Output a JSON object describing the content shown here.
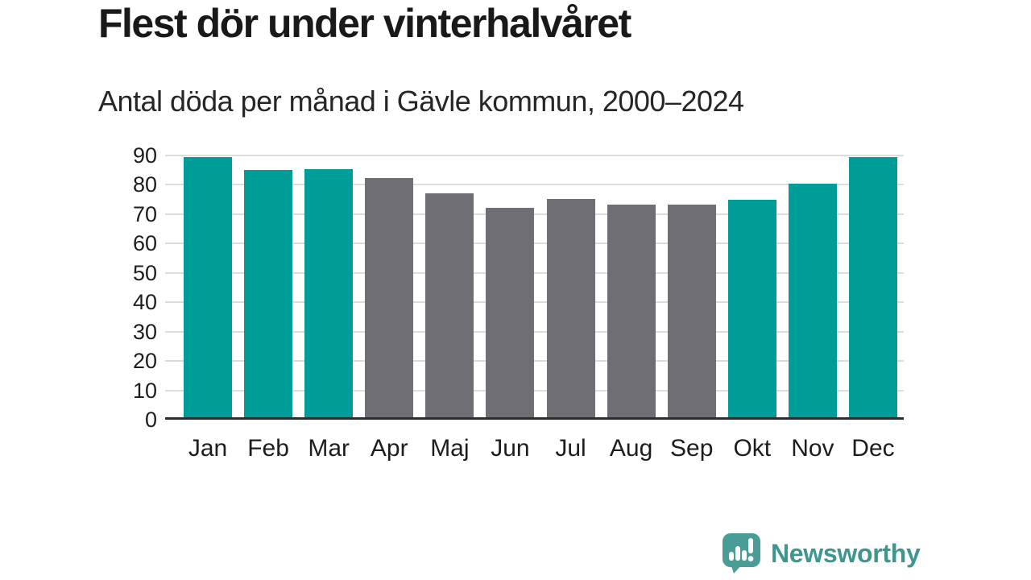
{
  "chart_data": {
    "type": "bar",
    "title": "Flest dör under vinterhalvåret",
    "subtitle": "Antal döda per månad i Gävle kommun, 2000–2024",
    "categories": [
      "Jan",
      "Feb",
      "Mar",
      "Apr",
      "Maj",
      "Jun",
      "Jul",
      "Aug",
      "Sep",
      "Okt",
      "Nov",
      "Dec"
    ],
    "values": [
      89.4,
      85.0,
      85.4,
      82.4,
      77.2,
      72.1,
      75.1,
      73.4,
      73.2,
      74.9,
      80.3,
      89.5
    ],
    "bar_colors": [
      "#009c98",
      "#009c98",
      "#009c98",
      "#6f6e74",
      "#6f6e74",
      "#6f6e74",
      "#6f6e74",
      "#6f6e74",
      "#6f6e74",
      "#009c98",
      "#009c98",
      "#009c98"
    ],
    "xlabel": "",
    "ylabel": "",
    "ylim": [
      0,
      90
    ],
    "yticks": [
      0,
      10,
      20,
      30,
      40,
      50,
      60,
      70,
      80,
      90
    ],
    "grid": true,
    "legend": "none"
  },
  "footer": {
    "brand": "Newsworthy"
  },
  "colors": {
    "teal_bar": "#009c98",
    "gray_bar": "#6f6e74",
    "gridline": "#dcdcdc",
    "axis_line": "#2d2d2d",
    "title_text": "#191919",
    "label_text": "#1d1d1d",
    "logo_text": "#3e968f",
    "logo_icon": "#4a9d97"
  }
}
